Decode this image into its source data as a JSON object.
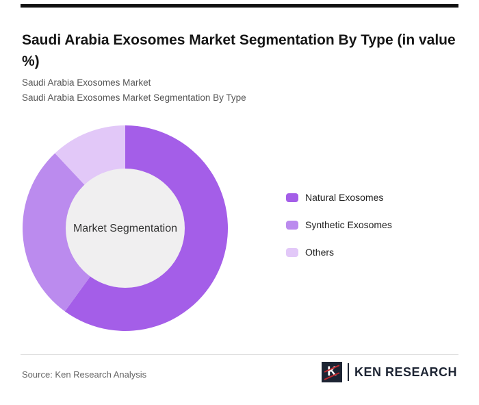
{
  "page": {
    "title": "Saudi Arabia Exosomes Market Segmentation By Type (in value %)",
    "subtitle1": "Saudi Arabia Exosomes Market",
    "subtitle2": "Saudi Arabia Exosomes Market Segmentation By Type",
    "source": "Source: Ken Research Analysis",
    "brand": "KEN RESEARCH",
    "brand_initial": "K"
  },
  "chart_data": {
    "type": "pie",
    "donut": true,
    "center_label": "Market Segmentation",
    "categories": [
      "Natural Exosomes",
      "Synthetic Exosomes",
      "Others"
    ],
    "values": [
      60,
      28,
      12
    ],
    "colors": [
      "#a45ee8",
      "#bb8bee",
      "#e2c8f8"
    ],
    "center_color": "#f0eff0",
    "center_text_color": "#333333",
    "start_angle_deg": 0,
    "direction": "clockwise",
    "legend_position": "right",
    "data_labels": "none"
  }
}
